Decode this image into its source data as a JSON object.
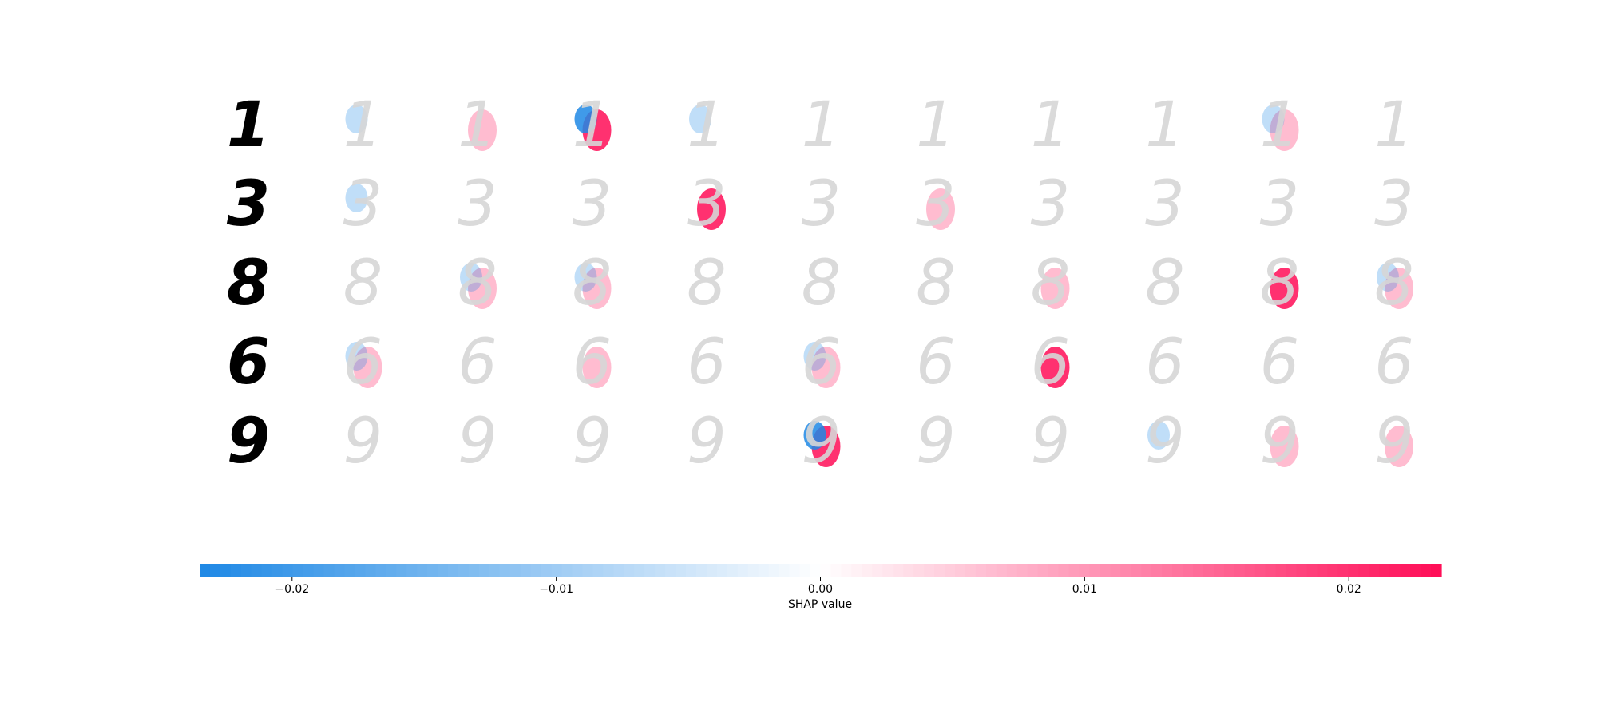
{
  "chart_data": {
    "type": "heatmap",
    "description_kind": "shap-image-plot",
    "rows": [
      {
        "digit": "1",
        "highlight": {
          "3": [
            "blue",
            "pink",
            "strong"
          ],
          "2": [
            "pink"
          ],
          "9": [
            "blue",
            "pink"
          ],
          "1": [
            "blue"
          ],
          "4": [
            "blue"
          ]
        }
      },
      {
        "digit": "3",
        "highlight": {
          "4": [
            "pink",
            "strong"
          ],
          "6": [
            "pink"
          ],
          "1": [
            "blue"
          ]
        }
      },
      {
        "digit": "8",
        "highlight": {
          "2": [
            "blue",
            "pink"
          ],
          "3": [
            "blue",
            "pink"
          ],
          "9": [
            "pink",
            "strong"
          ],
          "10": [
            "pink",
            "blue"
          ],
          "7": [
            "pink"
          ]
        }
      },
      {
        "digit": "6",
        "highlight": {
          "7": [
            "pink",
            "strong"
          ],
          "5": [
            "blue",
            "pink"
          ],
          "1": [
            "blue",
            "pink"
          ],
          "3": [
            "pink"
          ]
        }
      },
      {
        "digit": "9",
        "highlight": {
          "5": [
            "blue",
            "pink",
            "strong"
          ],
          "10": [
            "pink"
          ],
          "9": [
            "pink"
          ],
          "8": [
            "blue"
          ]
        }
      }
    ],
    "explanation_columns": 10,
    "colorbar": {
      "label": "SHAP value",
      "min": -0.0235,
      "max": 0.0235,
      "ticks": [
        -0.02,
        -0.01,
        0.0,
        0.01,
        0.02
      ],
      "tick_labels": [
        "−0.02",
        "−0.01",
        "0.00",
        "0.01",
        "0.02"
      ],
      "negative_color": "#1e88e5",
      "positive_color": "#ff0d57",
      "neutral_color": "#ffffff"
    },
    "digit_color": "#d6d6d6",
    "input_digit_color": "#000000"
  }
}
